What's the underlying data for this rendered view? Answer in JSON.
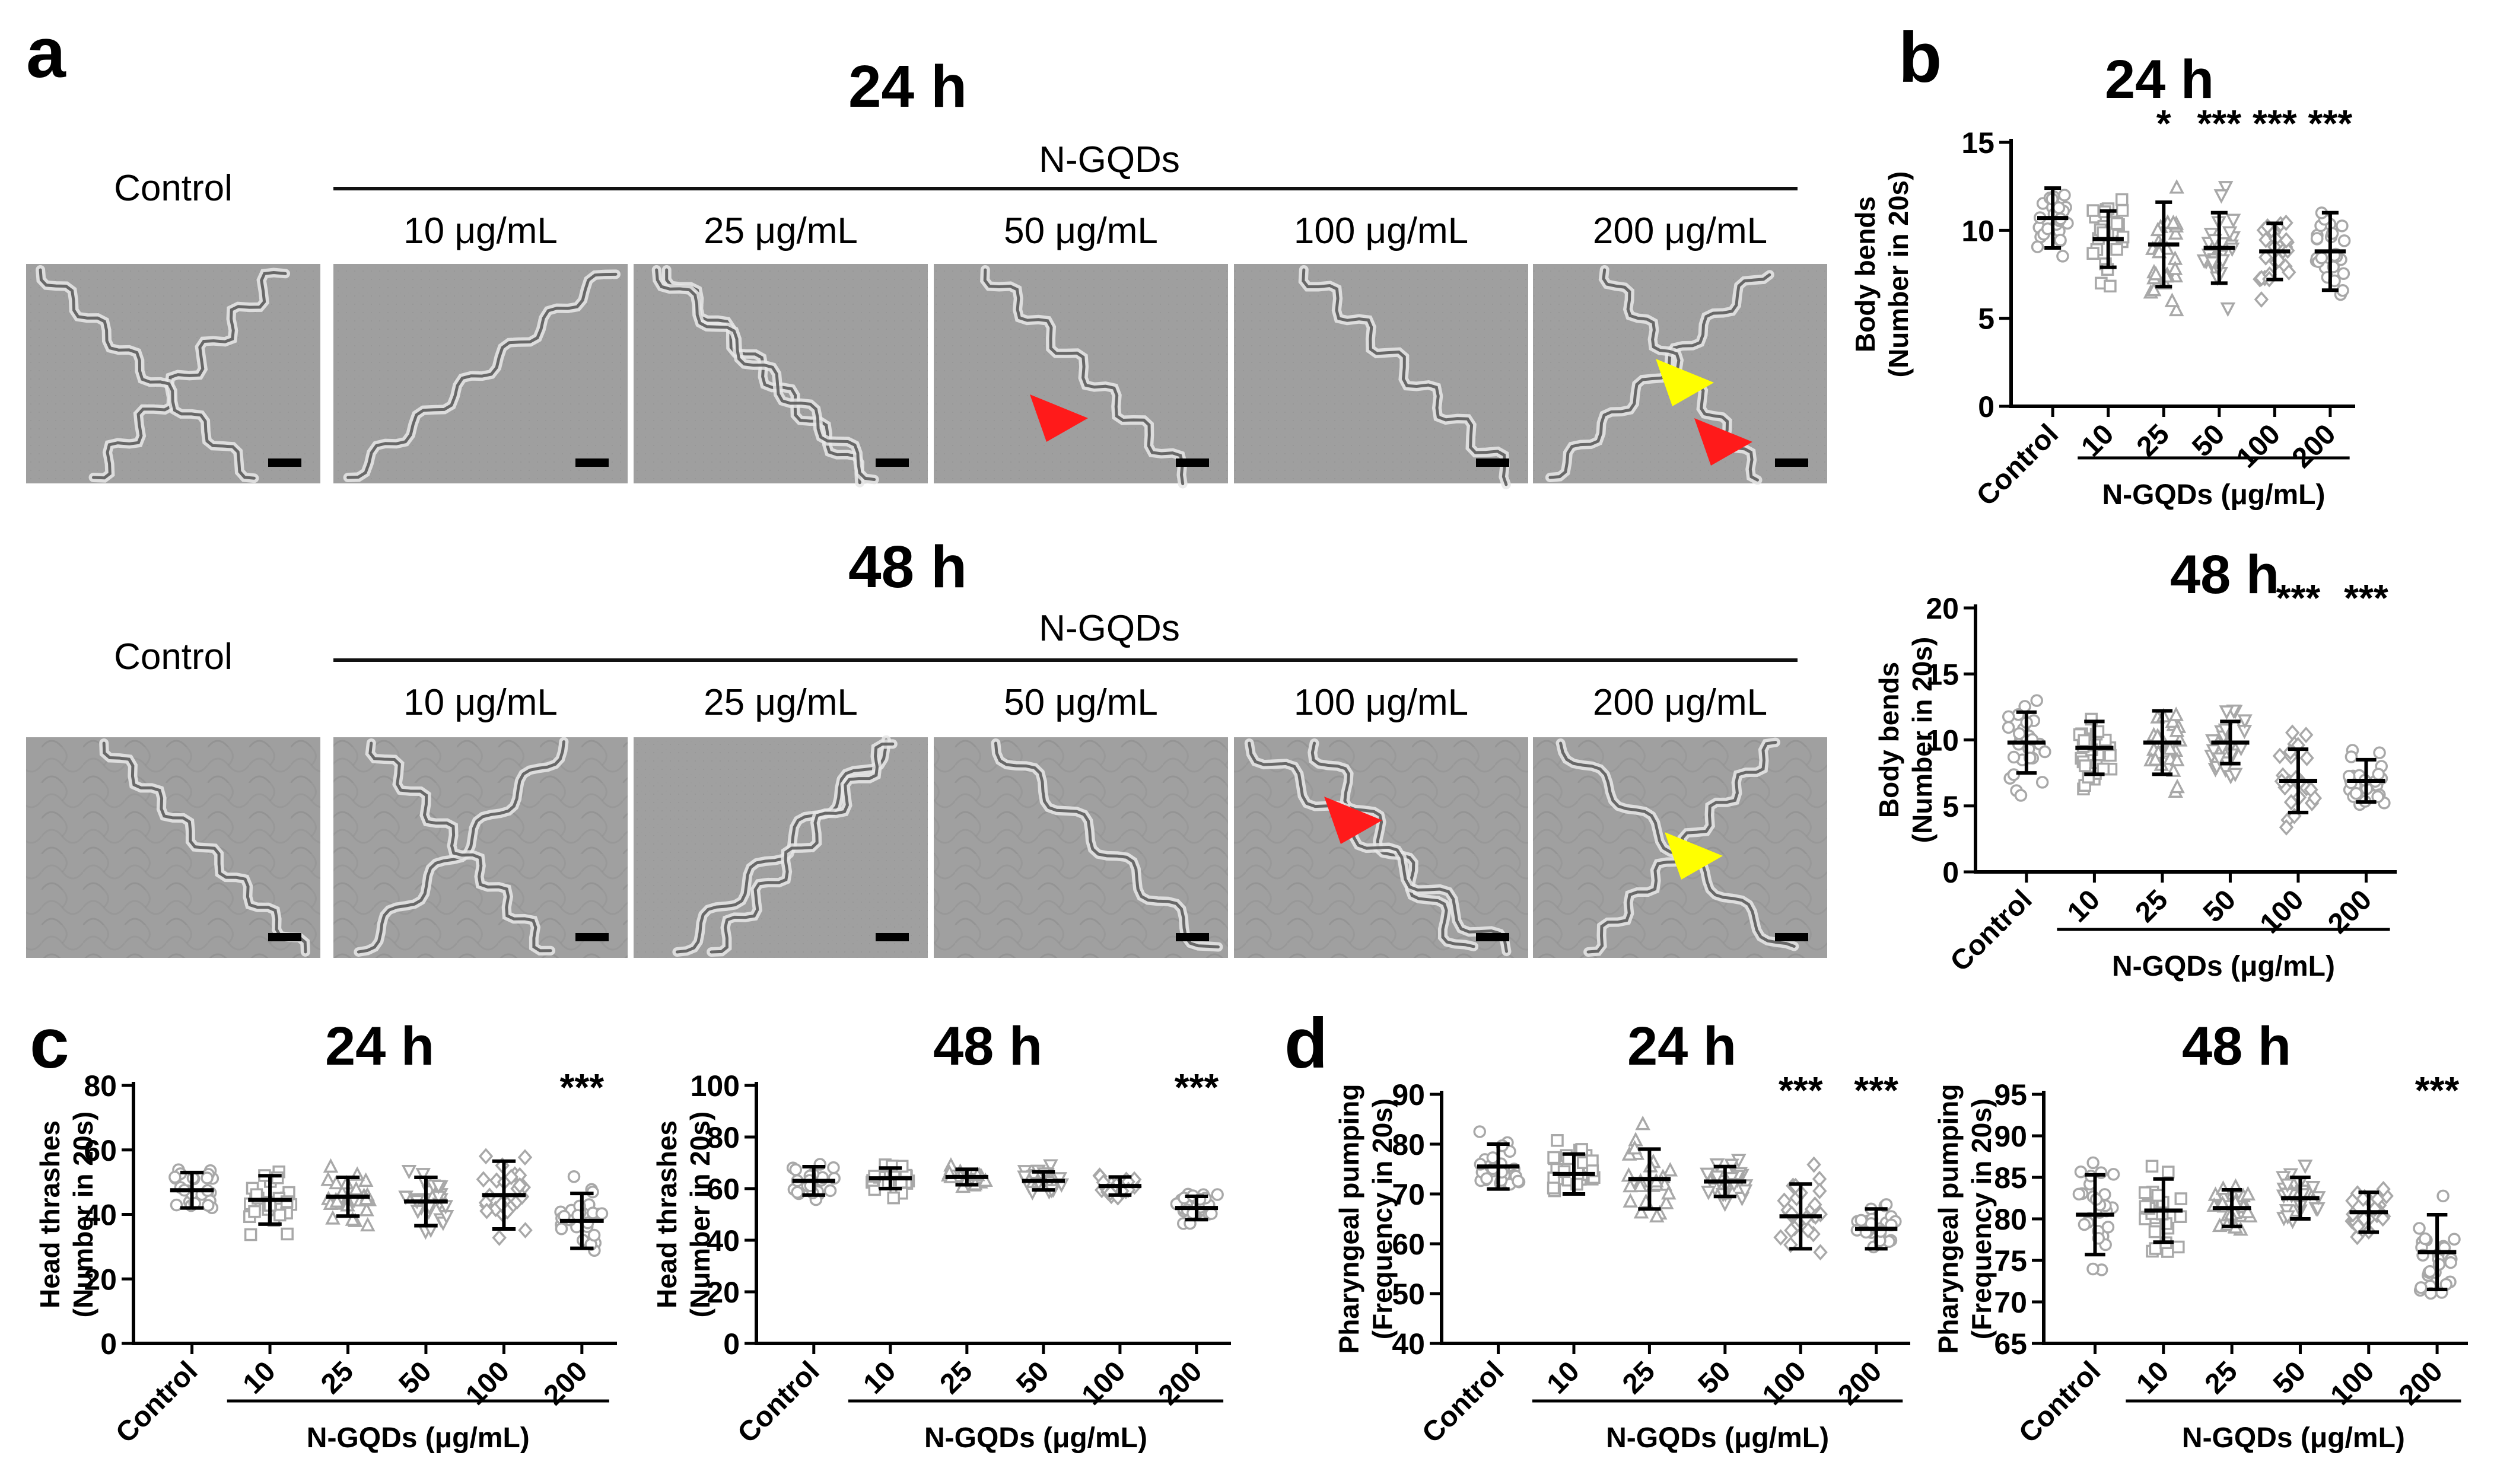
{
  "panel_letters": {
    "a": "a",
    "b": "b",
    "c": "c",
    "d": "d"
  },
  "panel_a": {
    "rows": [
      {
        "title": "24 h",
        "group_label": "N-GQDs",
        "labels": [
          "Control",
          "10 μg/mL",
          "25 μg/mL",
          "50 μg/mL",
          "100 μg/mL",
          "200 μg/mL"
        ],
        "images": [
          "control-24h",
          "10-24h",
          "25-24h",
          "50-24h",
          "100-24h",
          "200-24h"
        ],
        "arrows": [
          {
            "image": 3,
            "color": "red"
          },
          {
            "image": 5,
            "color": "yellow"
          },
          {
            "image": 5,
            "color": "red"
          }
        ]
      },
      {
        "title": "48 h",
        "group_label": "N-GQDs",
        "labels": [
          "Control",
          "10 μg/mL",
          "25 μg/mL",
          "50 μg/mL",
          "100 μg/mL",
          "200 μg/mL"
        ],
        "images": [
          "control-48h",
          "10-48h",
          "25-48h",
          "50-48h",
          "100-48h",
          "200-48h"
        ],
        "arrows": [
          {
            "image": 4,
            "color": "red"
          },
          {
            "image": 5,
            "color": "yellow"
          }
        ]
      }
    ]
  },
  "chart_data": [
    {
      "id": "b-24h",
      "panel": "b",
      "type": "scatter",
      "title": "24 h",
      "ylabel": [
        "Body bends",
        "(Number in 20s)"
      ],
      "ylim": [
        0,
        15
      ],
      "yticks": [
        0,
        5,
        10,
        15
      ],
      "categories": [
        "Control",
        "10",
        "25",
        "50",
        "100",
        "200"
      ],
      "group_label": "N-GQDs (μg/mL)",
      "mean": [
        10.7,
        9.5,
        9.2,
        9.0,
        8.8,
        8.8
      ],
      "sd": [
        1.7,
        1.6,
        2.4,
        2.0,
        1.6,
        2.2
      ],
      "significance": [
        "",
        "",
        "*",
        "***",
        "***",
        "***"
      ],
      "marker": [
        "circle",
        "square",
        "triangle",
        "triangle-down",
        "diamond",
        "circle"
      ]
    },
    {
      "id": "b-48h",
      "panel": "b",
      "type": "scatter",
      "title": "48 h",
      "ylabel": [
        "Body bends",
        "(Number in 20s)"
      ],
      "ylim": [
        0,
        20
      ],
      "yticks": [
        0,
        5,
        10,
        15,
        20
      ],
      "categories": [
        "Control",
        "10",
        "25",
        "50",
        "100",
        "200"
      ],
      "group_label": "N-GQDs (μg/mL)",
      "mean": [
        9.8,
        9.4,
        9.8,
        9.8,
        6.9,
        6.9
      ],
      "sd": [
        2.3,
        2.0,
        2.4,
        1.6,
        2.4,
        1.6
      ],
      "significance": [
        "",
        "",
        "",
        "",
        "***",
        "***"
      ],
      "marker": [
        "circle",
        "square",
        "triangle",
        "triangle-down",
        "diamond",
        "circle"
      ]
    },
    {
      "id": "c-24h",
      "panel": "c",
      "type": "scatter",
      "title": "24 h",
      "ylabel": [
        "Head thrashes",
        "(Number in 20s)"
      ],
      "ylim": [
        0,
        80
      ],
      "yticks": [
        0,
        20,
        40,
        60,
        80
      ],
      "categories": [
        "Control",
        "10",
        "25",
        "50",
        "100",
        "200"
      ],
      "group_label": "N-GQDs (μg/mL)",
      "mean": [
        47.5,
        44.5,
        45.5,
        44.0,
        46.0,
        38.0
      ],
      "sd": [
        5.5,
        7.5,
        6.0,
        7.5,
        10.5,
        8.5
      ],
      "significance": [
        "",
        "",
        "",
        "",
        "",
        "***"
      ],
      "marker": [
        "circle",
        "square",
        "triangle",
        "triangle-down",
        "diamond",
        "circle"
      ]
    },
    {
      "id": "c-48h",
      "panel": "c",
      "type": "scatter",
      "title": "48 h",
      "ylabel": [
        "Head thrashes",
        "(Number in 20s)"
      ],
      "ylim": [
        0,
        100
      ],
      "yticks": [
        0,
        20,
        40,
        60,
        80,
        100
      ],
      "categories": [
        "Control",
        "10",
        "25",
        "50",
        "100",
        "200"
      ],
      "group_label": "N-GQDs (μg/mL)",
      "mean": [
        63.0,
        64.0,
        64.5,
        63.0,
        61.0,
        52.5
      ],
      "sd": [
        5.5,
        4.0,
        3.0,
        3.5,
        3.5,
        4.5
      ],
      "significance": [
        "",
        "",
        "",
        "",
        "",
        "***"
      ],
      "marker": [
        "circle",
        "square",
        "triangle",
        "triangle-down",
        "diamond",
        "circle"
      ]
    },
    {
      "id": "d-24h",
      "panel": "d",
      "type": "scatter",
      "title": "24 h",
      "ylabel": [
        "Pharyngeal pumping",
        "(Frequency in 20s)"
      ],
      "ylim": [
        40,
        90
      ],
      "yticks": [
        40,
        50,
        60,
        70,
        80,
        90
      ],
      "categories": [
        "Control",
        "10",
        "25",
        "50",
        "100",
        "200"
      ],
      "group_label": "N-GQDs (μg/mL)",
      "mean": [
        75.5,
        74.0,
        73.0,
        72.5,
        65.5,
        63.0
      ],
      "sd": [
        4.5,
        4.0,
        6.0,
        3.0,
        6.5,
        4.0
      ],
      "significance": [
        "",
        "",
        "",
        "",
        "***",
        "***"
      ],
      "marker": [
        "circle",
        "square",
        "triangle",
        "triangle-down",
        "diamond",
        "circle"
      ]
    },
    {
      "id": "d-48h",
      "panel": "d",
      "type": "scatter",
      "title": "48 h",
      "ylabel": [
        "Pharyngeal pumping",
        "(Frequency in 20s)"
      ],
      "ylim": [
        65,
        95
      ],
      "yticks": [
        65,
        70,
        75,
        80,
        85,
        90,
        95
      ],
      "categories": [
        "Control",
        "10",
        "25",
        "50",
        "100",
        "200"
      ],
      "group_label": "N-GQDs (μg/mL)",
      "mean": [
        80.5,
        81.0,
        81.3,
        82.5,
        80.8,
        76.0
      ],
      "sd": [
        4.8,
        3.8,
        2.2,
        2.5,
        2.4,
        4.5
      ],
      "significance": [
        "",
        "",
        "",
        "",
        "",
        "***"
      ],
      "marker": [
        "circle",
        "square",
        "triangle",
        "triangle-down",
        "diamond",
        "circle"
      ]
    }
  ]
}
